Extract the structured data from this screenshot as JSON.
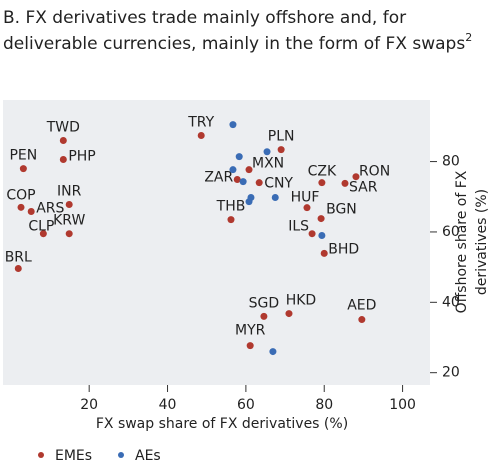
{
  "chart_data": {
    "type": "scatter",
    "title": [
      "B. FX derivatives trade mainly offshore and, for",
      "deliverable currencies, mainly in the form of FX swaps"
    ],
    "title_note": "2",
    "xlabel": "FX swap share of FX derivatives (%)",
    "ylabel": [
      "Offshore share of FX",
      "derivatives (%)"
    ],
    "xlim": [
      -2,
      107
    ],
    "ylim": [
      16.5,
      97.5
    ],
    "xticks": [
      20,
      40,
      60,
      80,
      100
    ],
    "yticks": [
      20,
      40,
      60,
      80
    ],
    "series": [
      {
        "name": "EMEs",
        "color": "#b0392f",
        "labels": [
          "TWD",
          "PEN",
          "PHP",
          "COP",
          "ARS",
          "INR",
          "CLP",
          "KRW",
          "BRL",
          "TRY",
          "PLN",
          "MXN",
          "ZAR",
          "CNY",
          "CZK",
          "RON",
          "SAR",
          "THB",
          "HUF",
          "BGN",
          "ILS",
          "BHD",
          "SGD",
          "HKD",
          "AED",
          "MYR"
        ],
        "x": [
          13.4,
          3.2,
          13.4,
          2.6,
          5.2,
          14.9,
          8.3,
          14.9,
          1.9,
          48.6,
          69,
          60.8,
          57.8,
          63.4,
          79.4,
          88.1,
          85.3,
          56.2,
          75.6,
          79.2,
          76.9,
          80,
          64.6,
          71,
          89.6,
          61.1
        ],
        "values": [
          86,
          78,
          80.6,
          67,
          65.8,
          67.8,
          59.5,
          59.5,
          49.6,
          87.4,
          83.4,
          77.7,
          74.9,
          74,
          74,
          75.7,
          73.8,
          63.5,
          66.9,
          63.8,
          59.5,
          53.9,
          36,
          36.8,
          35.1,
          27.7
        ]
      },
      {
        "name": "AEs",
        "color": "#3a6cb5",
        "x": [
          56.7,
          65.4,
          58.3,
          56.7,
          59.3,
          61.3,
          60.8,
          67.5,
          79.4,
          66.9
        ],
        "values": [
          90.5,
          82.8,
          81.4,
          77.7,
          74.3,
          69.8,
          68.6,
          69.8,
          59,
          26
        ]
      }
    ]
  }
}
